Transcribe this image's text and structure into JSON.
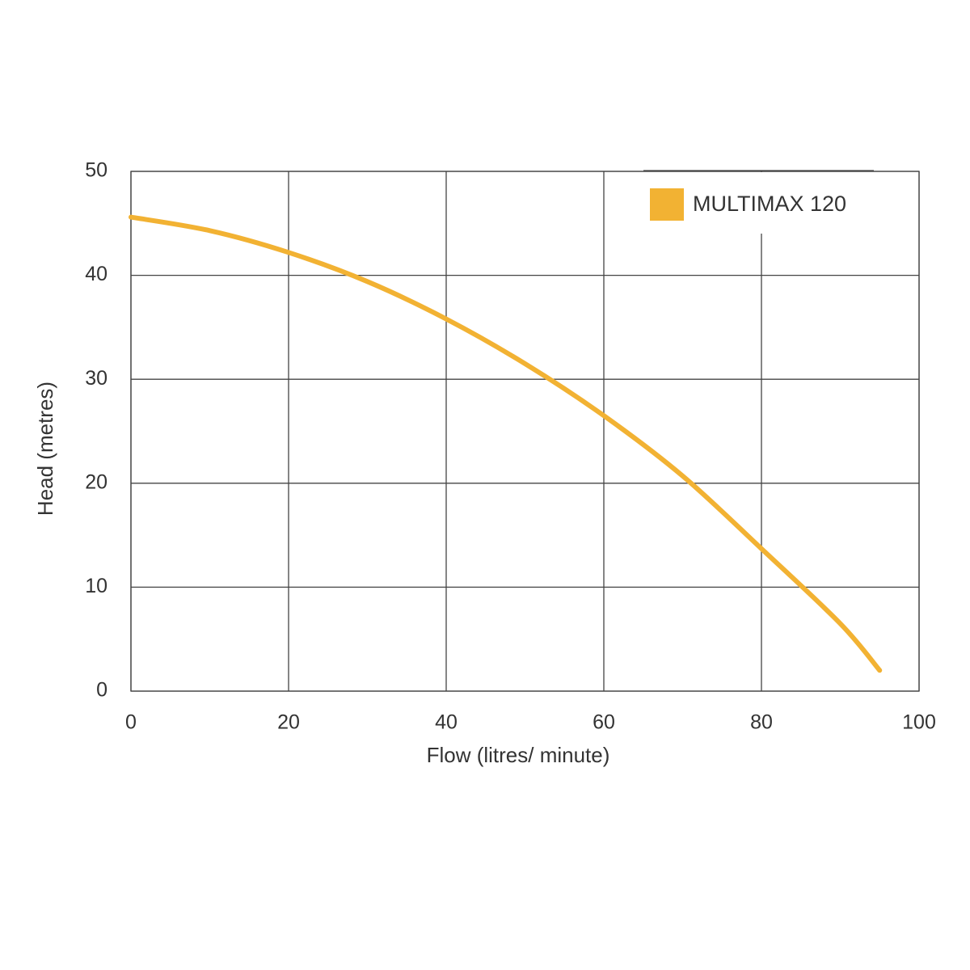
{
  "chart_data": {
    "type": "line",
    "x_label": "Flow (litres/ minute)",
    "y_label": "Head (metres)",
    "series": [
      {
        "name": "MULTIMAX 120",
        "color": "#f2b233",
        "x": [
          0,
          10,
          20,
          30,
          40,
          50,
          60,
          70,
          80,
          90,
          95
        ],
        "values": [
          45.6,
          44.3,
          42.2,
          39.4,
          35.8,
          31.5,
          26.5,
          20.7,
          13.7,
          6.5,
          2
        ]
      }
    ],
    "xlim": [
      0,
      100
    ],
    "xticks": [
      0,
      20,
      40,
      60,
      80,
      100
    ],
    "ylim": [
      0,
      50
    ],
    "yticks": [
      0,
      10,
      20,
      30,
      40,
      50
    ],
    "grid": true,
    "legend": "upper-right"
  }
}
